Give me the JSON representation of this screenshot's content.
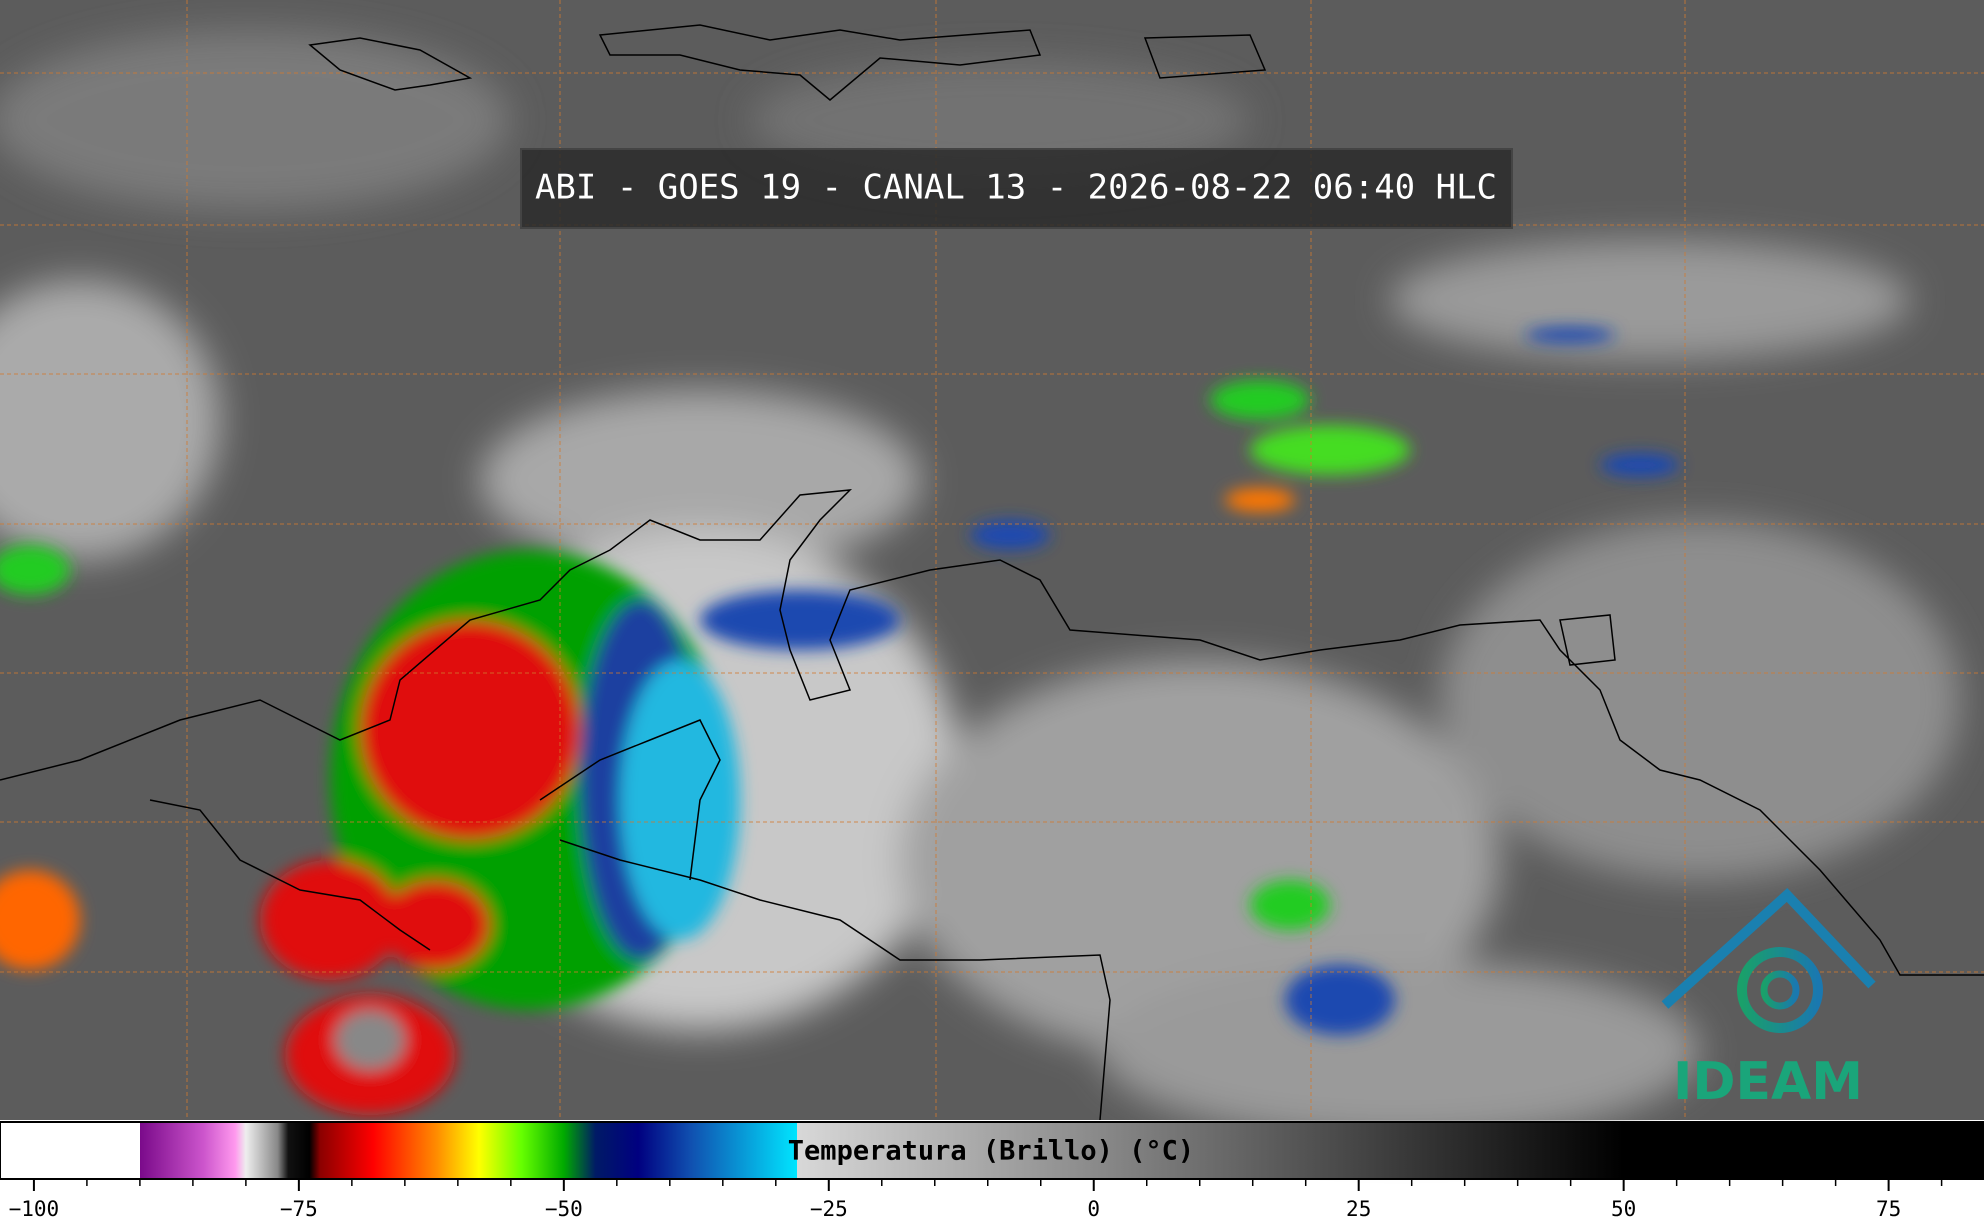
{
  "header": {
    "title": "ABI - GOES 19 - CANAL 13 - 2026-08-22 06:40 HLC"
  },
  "logo": {
    "text": "IDEAM"
  },
  "chart_data": {
    "type": "colorbar",
    "title": "Temperatura (Brillo) (°C)",
    "xlim": [
      -103.2,
      84
    ],
    "xticks": [
      {
        "value": -100,
        "label": "−100"
      },
      {
        "value": -75,
        "label": "−75"
      },
      {
        "value": -50,
        "label": "−50"
      },
      {
        "value": -25,
        "label": "−25"
      },
      0,
      25,
      50,
      75
    ],
    "minor_xticks": [
      -95,
      -90,
      -85,
      -80,
      -70,
      -65,
      -60,
      -55,
      -45,
      -40,
      -35,
      -30,
      -20,
      -15,
      -10,
      -5,
      5,
      10,
      15,
      20,
      30,
      35,
      40,
      45,
      55,
      60,
      65,
      70,
      80
    ],
    "stops": [
      {
        "value": -103.2,
        "color": "#ffffff"
      },
      {
        "value": -90,
        "color": "#ffffff"
      },
      {
        "value": -90,
        "color": "#7a0a8a"
      },
      {
        "value": -84,
        "color": "#cc55cc"
      },
      {
        "value": -81,
        "color": "#ff99ee"
      },
      {
        "value": -80,
        "color": "#eeeeee"
      },
      {
        "value": -77,
        "color": "#888888"
      },
      {
        "value": -76,
        "color": "#111111"
      },
      {
        "value": -74,
        "color": "#000000"
      },
      {
        "value": -73,
        "color": "#8b0000"
      },
      {
        "value": -68,
        "color": "#ff0000"
      },
      {
        "value": -62,
        "color": "#ff8c00"
      },
      {
        "value": -58,
        "color": "#ffff00"
      },
      {
        "value": -54,
        "color": "#66ff00"
      },
      {
        "value": -50,
        "color": "#00aa00"
      },
      {
        "value": -47,
        "color": "#001a66"
      },
      {
        "value": -43,
        "color": "#000080"
      },
      {
        "value": -38,
        "color": "#1050b0"
      },
      {
        "value": -28,
        "color": "#00e5ff"
      },
      {
        "value": -28,
        "color": "#d8d8d8"
      },
      {
        "value": 50,
        "color": "#000000"
      },
      {
        "value": 84,
        "color": "#000000"
      }
    ]
  }
}
